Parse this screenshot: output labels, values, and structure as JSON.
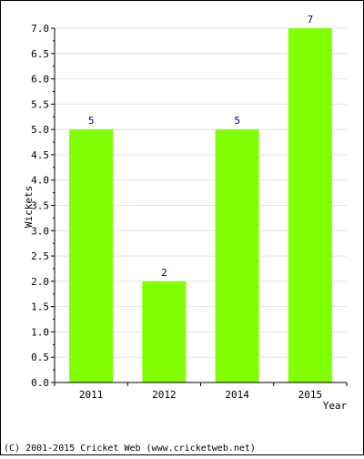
{
  "chart_data": {
    "type": "bar",
    "categories": [
      "2011",
      "2012",
      "2014",
      "2015"
    ],
    "values": [
      5,
      2,
      5,
      7
    ],
    "data_labels": [
      "5",
      "2",
      "5",
      "7"
    ],
    "ylabel": "Wickets",
    "xlabel": "Year",
    "ylim": [
      0,
      7.0
    ],
    "yticks": [
      "0.0",
      "0.5",
      "1.0",
      "1.5",
      "2.0",
      "2.5",
      "3.0",
      "3.5",
      "4.0",
      "4.5",
      "5.0",
      "5.5",
      "6.0",
      "6.5",
      "7.0"
    ],
    "grid": true,
    "bar_color": "#80ff00",
    "label_color": "#000080"
  },
  "footer": {
    "copyright": "(C) 2001-2015 Cricket Web (www.cricketweb.net)"
  }
}
